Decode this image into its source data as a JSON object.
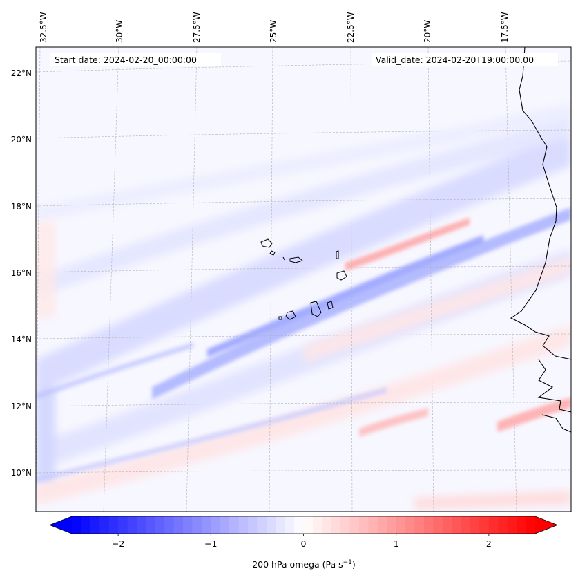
{
  "map": {
    "title_start": "Start date: 2024-02-20_00:00:00",
    "title_valid": "Valid_date: 2024-02-20T19:00:00.00",
    "variable": "200 hPa omega",
    "projection": "lambert-conformal",
    "extent": {
      "lon_min": -33.0,
      "lon_max": -15.5,
      "lat_min": 9.0,
      "lat_max": 22.8
    },
    "longitude_labels": [
      "32.5°W",
      "30°W",
      "27.5°W",
      "25°W",
      "22.5°W",
      "20°W",
      "17.5°W"
    ],
    "latitude_labels": [
      "22°N",
      "20°N",
      "18°N",
      "16°N",
      "14°N",
      "12°N",
      "10°N"
    ],
    "features": [
      "Cape Verde islands",
      "West African coastline (Senegal, Mauritania, Guinea-Bissau)"
    ]
  },
  "colorbar": {
    "label_main": "200 hPa omega (Pa s",
    "label_exp": "−1",
    "label_close": ")",
    "ticks": [
      "−2",
      "−1",
      "0",
      "1",
      "2"
    ],
    "tick_values": [
      -2,
      -1,
      0,
      1,
      2
    ],
    "vmin": -2.5,
    "vmax": 2.5,
    "extend": "both",
    "cmap": "bwr",
    "color_low": "#0000ff",
    "color_mid": "#ffffff",
    "color_high": "#ff0000"
  }
}
